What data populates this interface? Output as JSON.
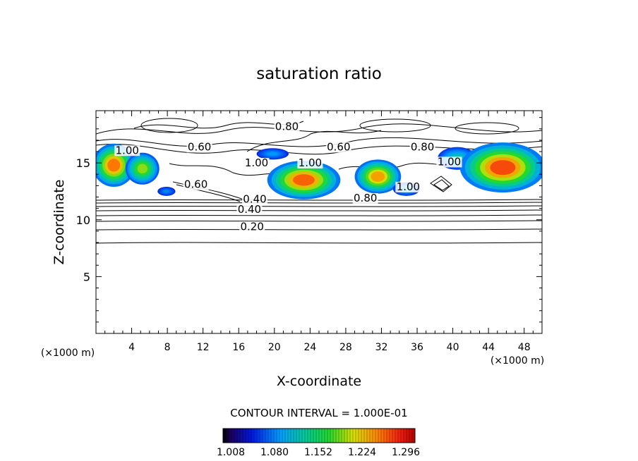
{
  "chart_data": {
    "type": "heatmap",
    "title": "saturation ratio",
    "xlabel": "X-coordinate",
    "ylabel": "Z-coordinate",
    "x_unit_left": "(×1000 m)",
    "x_unit_right": "(×1000 m)",
    "xlim": [
      0,
      50
    ],
    "ylim": [
      0,
      19.6
    ],
    "x_ticks": [
      4,
      8,
      12,
      16,
      20,
      24,
      28,
      32,
      36,
      40,
      44,
      48
    ],
    "y_ticks": [
      5,
      10,
      15
    ],
    "contour_interval_text": "CONTOUR INTERVAL = 1.000E-01",
    "colorbar": {
      "min": 1.0,
      "max": 1.33,
      "tick_labels": [
        "1.008",
        "1.080",
        "1.152",
        "1.224",
        "1.296"
      ]
    },
    "contour_labels": [
      {
        "text": "0.20",
        "x": 17.5,
        "y": 9.1
      },
      {
        "text": "0.40",
        "x": 17.2,
        "y": 10.6
      },
      {
        "text": "0.40",
        "x": 17.8,
        "y": 11.5
      },
      {
        "text": "0.60",
        "x": 11.2,
        "y": 12.8
      },
      {
        "text": "0.80",
        "x": 30.2,
        "y": 11.6
      },
      {
        "text": "1.00",
        "x": 35.0,
        "y": 12.6
      },
      {
        "text": "1.00",
        "x": 18.0,
        "y": 14.7
      },
      {
        "text": "1.00",
        "x": 24.0,
        "y": 14.7
      },
      {
        "text": "1.00",
        "x": 39.6,
        "y": 14.8
      },
      {
        "text": "1.00",
        "x": 3.5,
        "y": 15.8
      },
      {
        "text": "0.60",
        "x": 11.6,
        "y": 16.1
      },
      {
        "text": "0.60",
        "x": 27.2,
        "y": 16.1
      },
      {
        "text": "0.80",
        "x": 36.6,
        "y": 16.1
      },
      {
        "text": "0.80",
        "x": 21.4,
        "y": 17.9
      }
    ],
    "supersaturated_regions": [
      {
        "cx": 2.0,
        "cy": 14.8,
        "rx": 2.4,
        "ry": 1.9,
        "peak": 1.3
      },
      {
        "cx": 5.2,
        "cy": 14.5,
        "rx": 1.9,
        "ry": 1.4,
        "peak": 1.22
      },
      {
        "cx": 7.9,
        "cy": 12.5,
        "rx": 1.0,
        "ry": 0.4,
        "peak": 1.06
      },
      {
        "cx": 19.8,
        "cy": 15.8,
        "rx": 1.8,
        "ry": 0.5,
        "peak": 1.07
      },
      {
        "cx": 23.3,
        "cy": 13.5,
        "rx": 4.1,
        "ry": 1.7,
        "peak": 1.31
      },
      {
        "cx": 31.6,
        "cy": 13.8,
        "rx": 2.6,
        "ry": 1.5,
        "peak": 1.28
      },
      {
        "cx": 34.8,
        "cy": 12.7,
        "rx": 1.5,
        "ry": 0.6,
        "peak": 1.1
      },
      {
        "cx": 40.5,
        "cy": 15.4,
        "rx": 2.2,
        "ry": 1.0,
        "peak": 1.12
      },
      {
        "cx": 45.6,
        "cy": 14.6,
        "rx": 4.8,
        "ry": 2.2,
        "peak": 1.32
      }
    ]
  }
}
